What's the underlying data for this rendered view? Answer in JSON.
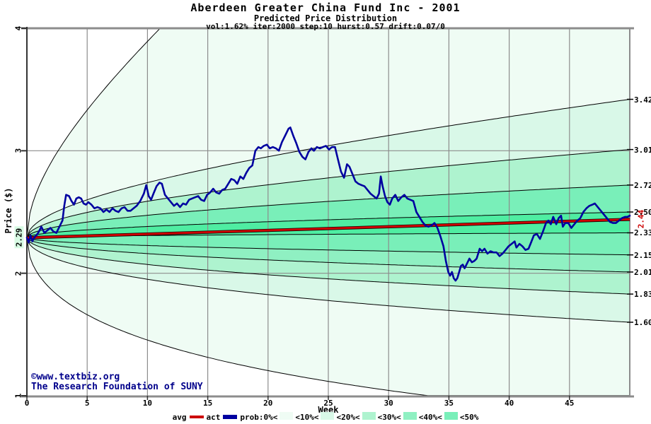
{
  "header": {
    "title": "Aberdeen Greater China Fund Inc - 2001",
    "subtitle": "Predicted Price Distribution",
    "params": "vol:1.62% iter:2000 step:10 hurst:0.57 drift:0.07/0"
  },
  "watermark": {
    "line1": "©www.textbiz.org",
    "line2": "The Research Foundation of SUNY"
  },
  "legend": {
    "avg_label": "avg",
    "act_label": "act",
    "prob_label": "prob:0%<",
    "band_labels": [
      "<10%<",
      "<20%<",
      "<30%<",
      "<40%<",
      "<50%"
    ]
  },
  "colors": {
    "act": "#0000a0",
    "avg": "#cc0000",
    "watermark": "#00008b",
    "grid": "#8c8c8c",
    "frame": "#8c8c8c",
    "axis": "#333333",
    "boundary": "#000000",
    "start_highlight": "#d8fbe4",
    "bands": [
      "#effcf4",
      "#d9f8e8",
      "#aef3cf",
      "#8ff0c2",
      "#79efb9",
      "#4feda2"
    ]
  },
  "chart_data": {
    "type": "line",
    "title": "Aberdeen Greater China Fund Inc - 2001",
    "subtitle": "Predicted Price Distribution",
    "xlabel": "Week",
    "ylabel": "Price ($)",
    "x_range": [
      0,
      50
    ],
    "y_range": [
      1,
      4
    ],
    "x_ticks": [
      0,
      5,
      10,
      15,
      20,
      25,
      30,
      35,
      40,
      45
    ],
    "y_ticks": [
      4,
      3,
      2,
      1
    ],
    "grid": {
      "vertical_at": [
        5,
        10,
        15,
        20,
        25,
        30,
        35,
        40,
        45
      ],
      "horizontal_at": [
        2,
        3
      ]
    },
    "start_price": 2.29,
    "start_price_label": "2.29",
    "avg_final": 2.44,
    "avg_final_label": "2.44",
    "avg_series": {
      "start": 2.29,
      "end": 2.44,
      "shape": "linear"
    },
    "fan": {
      "model": "p(w) = start * exp(k*sqrt(w)), k = ln(end/start)/sqrt(50), clamped to y_range",
      "boundary_ends": [
        7.5,
        3.42,
        3.01,
        2.72,
        2.5,
        2.33,
        2.15,
        2.01,
        1.83,
        1.6,
        0.83
      ],
      "right_labels": [
        "3.42",
        "3.01",
        "2.72",
        "2.50",
        "2.33",
        "2.15",
        "2.01",
        "1.83",
        "1.60"
      ],
      "right_label_values": [
        3.42,
        3.01,
        2.72,
        2.5,
        2.33,
        2.15,
        2.01,
        1.83,
        1.6
      ],
      "band_color_index": [
        0,
        1,
        2,
        4,
        5,
        4,
        3,
        2,
        1,
        0
      ]
    },
    "act_series": [
      [
        0,
        2.29
      ],
      [
        0.15,
        2.25
      ],
      [
        0.3,
        2.31
      ],
      [
        0.45,
        2.26
      ],
      [
        0.6,
        2.29
      ],
      [
        0.8,
        2.31
      ],
      [
        1,
        2.34
      ],
      [
        1.2,
        2.38
      ],
      [
        1.45,
        2.33
      ],
      [
        1.7,
        2.35
      ],
      [
        1.95,
        2.37
      ],
      [
        2.2,
        2.34
      ],
      [
        2.45,
        2.33
      ],
      [
        2.7,
        2.38
      ],
      [
        2.95,
        2.43
      ],
      [
        3.1,
        2.55
      ],
      [
        3.25,
        2.64
      ],
      [
        3.5,
        2.63
      ],
      [
        3.7,
        2.59
      ],
      [
        3.9,
        2.56
      ],
      [
        4.1,
        2.61
      ],
      [
        4.3,
        2.62
      ],
      [
        4.5,
        2.61
      ],
      [
        4.7,
        2.57
      ],
      [
        4.9,
        2.56
      ],
      [
        5.1,
        2.58
      ],
      [
        5.35,
        2.56
      ],
      [
        5.6,
        2.53
      ],
      [
        5.85,
        2.54
      ],
      [
        6.1,
        2.53
      ],
      [
        6.35,
        2.5
      ],
      [
        6.6,
        2.52
      ],
      [
        6.85,
        2.5
      ],
      [
        7.1,
        2.53
      ],
      [
        7.35,
        2.51
      ],
      [
        7.6,
        2.5
      ],
      [
        7.85,
        2.53
      ],
      [
        8.1,
        2.54
      ],
      [
        8.35,
        2.51
      ],
      [
        8.6,
        2.51
      ],
      [
        8.85,
        2.53
      ],
      [
        9.1,
        2.55
      ],
      [
        9.4,
        2.59
      ],
      [
        9.7,
        2.65
      ],
      [
        9.9,
        2.72
      ],
      [
        10.1,
        2.63
      ],
      [
        10.3,
        2.6
      ],
      [
        10.5,
        2.65
      ],
      [
        10.75,
        2.71
      ],
      [
        11,
        2.74
      ],
      [
        11.2,
        2.73
      ],
      [
        11.45,
        2.64
      ],
      [
        11.7,
        2.61
      ],
      [
        11.95,
        2.58
      ],
      [
        12.2,
        2.55
      ],
      [
        12.45,
        2.57
      ],
      [
        12.7,
        2.54
      ],
      [
        12.95,
        2.57
      ],
      [
        13.2,
        2.56
      ],
      [
        13.45,
        2.6
      ],
      [
        13.7,
        2.61
      ],
      [
        13.95,
        2.62
      ],
      [
        14.2,
        2.63
      ],
      [
        14.45,
        2.6
      ],
      [
        14.7,
        2.59
      ],
      [
        14.95,
        2.64
      ],
      [
        15.2,
        2.66
      ],
      [
        15.45,
        2.69
      ],
      [
        15.7,
        2.66
      ],
      [
        15.95,
        2.65
      ],
      [
        16.2,
        2.68
      ],
      [
        16.45,
        2.69
      ],
      [
        16.7,
        2.73
      ],
      [
        16.95,
        2.77
      ],
      [
        17.2,
        2.76
      ],
      [
        17.45,
        2.73
      ],
      [
        17.7,
        2.79
      ],
      [
        17.95,
        2.77
      ],
      [
        18.2,
        2.82
      ],
      [
        18.45,
        2.86
      ],
      [
        18.7,
        2.88
      ],
      [
        18.95,
        3
      ],
      [
        19.2,
        3.03
      ],
      [
        19.4,
        3.02
      ],
      [
        19.65,
        3.04
      ],
      [
        19.9,
        3.05
      ],
      [
        20.15,
        3.02
      ],
      [
        20.4,
        3.03
      ],
      [
        20.65,
        3.02
      ],
      [
        20.9,
        3
      ],
      [
        21.15,
        3.07
      ],
      [
        21.4,
        3.12
      ],
      [
        21.7,
        3.18
      ],
      [
        21.85,
        3.19
      ],
      [
        22.1,
        3.12
      ],
      [
        22.35,
        3.06
      ],
      [
        22.6,
        2.99
      ],
      [
        22.85,
        2.95
      ],
      [
        23.1,
        2.93
      ],
      [
        23.35,
        2.99
      ],
      [
        23.6,
        3.02
      ],
      [
        23.8,
        3
      ],
      [
        24.05,
        3.03
      ],
      [
        24.3,
        3.02
      ],
      [
        24.55,
        3.03
      ],
      [
        24.8,
        3.04
      ],
      [
        25.05,
        3.01
      ],
      [
        25.3,
        3.03
      ],
      [
        25.55,
        3.03
      ],
      [
        25.8,
        2.93
      ],
      [
        26.05,
        2.83
      ],
      [
        26.3,
        2.78
      ],
      [
        26.55,
        2.89
      ],
      [
        26.75,
        2.87
      ],
      [
        27,
        2.81
      ],
      [
        27.25,
        2.75
      ],
      [
        27.5,
        2.73
      ],
      [
        27.75,
        2.72
      ],
      [
        28,
        2.71
      ],
      [
        28.25,
        2.68
      ],
      [
        28.5,
        2.65
      ],
      [
        28.75,
        2.63
      ],
      [
        29,
        2.61
      ],
      [
        29.2,
        2.65
      ],
      [
        29.35,
        2.79
      ],
      [
        29.5,
        2.71
      ],
      [
        29.7,
        2.63
      ],
      [
        29.9,
        2.58
      ],
      [
        30.1,
        2.56
      ],
      [
        30.3,
        2.61
      ],
      [
        30.55,
        2.64
      ],
      [
        30.8,
        2.59
      ],
      [
        31.05,
        2.62
      ],
      [
        31.3,
        2.64
      ],
      [
        31.55,
        2.61
      ],
      [
        31.8,
        2.6
      ],
      [
        32.05,
        2.59
      ],
      [
        32.3,
        2.5
      ],
      [
        32.55,
        2.46
      ],
      [
        32.8,
        2.42
      ],
      [
        33.05,
        2.39
      ],
      [
        33.3,
        2.38
      ],
      [
        33.55,
        2.39
      ],
      [
        33.8,
        2.41
      ],
      [
        34.05,
        2.37
      ],
      [
        34.3,
        2.3
      ],
      [
        34.55,
        2.22
      ],
      [
        34.75,
        2.1
      ],
      [
        34.95,
        2.01
      ],
      [
        35.1,
        1.98
      ],
      [
        35.25,
        2.01
      ],
      [
        35.4,
        1.96
      ],
      [
        35.55,
        1.94
      ],
      [
        35.7,
        1.96
      ],
      [
        35.85,
        2.01
      ],
      [
        36,
        2.06
      ],
      [
        36.15,
        2.07
      ],
      [
        36.3,
        2.04
      ],
      [
        36.5,
        2.08
      ],
      [
        36.7,
        2.12
      ],
      [
        36.9,
        2.09
      ],
      [
        37.1,
        2.1
      ],
      [
        37.3,
        2.12
      ],
      [
        37.55,
        2.2
      ],
      [
        37.75,
        2.18
      ],
      [
        37.95,
        2.2
      ],
      [
        38.2,
        2.16
      ],
      [
        38.45,
        2.18
      ],
      [
        38.7,
        2.17
      ],
      [
        38.95,
        2.17
      ],
      [
        39.2,
        2.14
      ],
      [
        39.45,
        2.16
      ],
      [
        39.7,
        2.19
      ],
      [
        39.95,
        2.22
      ],
      [
        40.2,
        2.24
      ],
      [
        40.45,
        2.26
      ],
      [
        40.6,
        2.21
      ],
      [
        40.85,
        2.24
      ],
      [
        41.1,
        2.22
      ],
      [
        41.35,
        2.19
      ],
      [
        41.6,
        2.2
      ],
      [
        41.85,
        2.26
      ],
      [
        42.05,
        2.31
      ],
      [
        42.3,
        2.32
      ],
      [
        42.55,
        2.28
      ],
      [
        42.8,
        2.34
      ],
      [
        43.05,
        2.41
      ],
      [
        43.25,
        2.43
      ],
      [
        43.45,
        2.4
      ],
      [
        43.65,
        2.46
      ],
      [
        43.9,
        2.4
      ],
      [
        44.1,
        2.45
      ],
      [
        44.3,
        2.47
      ],
      [
        44.45,
        2.38
      ],
      [
        44.65,
        2.41
      ],
      [
        44.9,
        2.41
      ],
      [
        45.15,
        2.37
      ],
      [
        45.4,
        2.4
      ],
      [
        45.65,
        2.43
      ],
      [
        45.9,
        2.45
      ],
      [
        46.15,
        2.5
      ],
      [
        46.4,
        2.53
      ],
      [
        46.65,
        2.55
      ],
      [
        46.9,
        2.56
      ],
      [
        47.1,
        2.57
      ],
      [
        47.35,
        2.54
      ],
      [
        47.6,
        2.51
      ],
      [
        47.85,
        2.48
      ],
      [
        48.1,
        2.45
      ],
      [
        48.35,
        2.42
      ],
      [
        48.6,
        2.41
      ],
      [
        48.85,
        2.41
      ],
      [
        49.1,
        2.43
      ],
      [
        49.35,
        2.45
      ],
      [
        49.6,
        2.46
      ],
      [
        49.8,
        2.46
      ],
      [
        50,
        2.47
      ]
    ]
  }
}
